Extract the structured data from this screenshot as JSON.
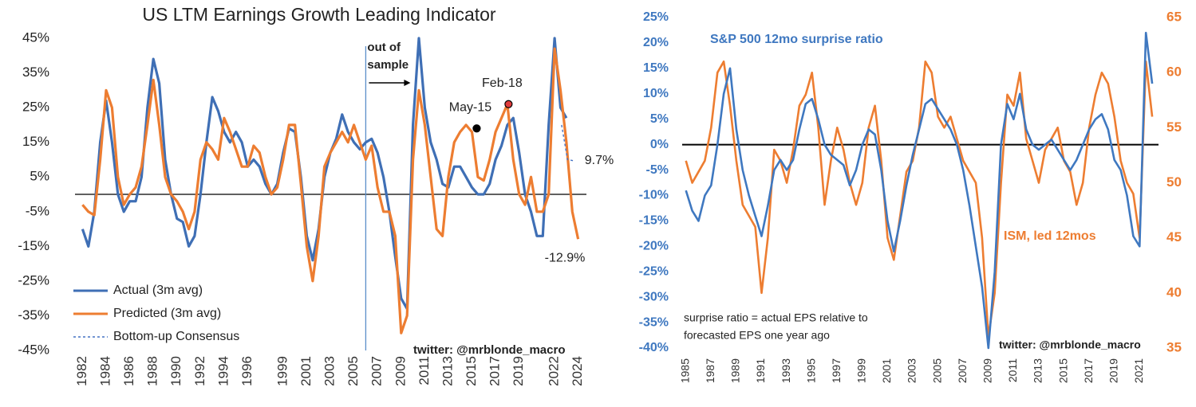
{
  "chart_data": [
    {
      "type": "line",
      "title": "US LTM Earnings Growth Leading Indicator",
      "xlim": [
        1981.7,
        2024.7
      ],
      "xticks": [
        1982,
        1984,
        1986,
        1988,
        1990,
        1992,
        1994,
        1996,
        1999,
        2001,
        2003,
        2005,
        2007,
        2009,
        2011,
        2013,
        2015,
        2017,
        2019,
        2022,
        2024
      ],
      "ylim": [
        -45,
        45
      ],
      "yticks": [
        {
          "value": 45,
          "label": "45%"
        },
        {
          "value": 35,
          "label": "35%"
        },
        {
          "value": 25,
          "label": "25%"
        },
        {
          "value": 15,
          "label": "15%"
        },
        {
          "value": 5,
          "label": "5%"
        },
        {
          "value": -5,
          "label": "-5%"
        },
        {
          "value": -15,
          "label": "-15%"
        },
        {
          "value": -25,
          "label": "-25%"
        },
        {
          "value": -35,
          "label": "-35%"
        },
        {
          "value": -45,
          "label": "-45%"
        }
      ],
      "x": [
        1982,
        1982.5,
        1983,
        1983.5,
        1984,
        1984.5,
        1985,
        1985.5,
        1986,
        1986.5,
        1987,
        1987.5,
        1988,
        1988.5,
        1989,
        1989.5,
        1990,
        1990.5,
        1991,
        1991.5,
        1992,
        1992.5,
        1993,
        1993.5,
        1994,
        1994.5,
        1995,
        1995.5,
        1996,
        1996.5,
        1997,
        1997.5,
        1998,
        1998.5,
        1999,
        1999.5,
        2000,
        2000.5,
        2001,
        2001.5,
        2002,
        2002.5,
        2003,
        2003.5,
        2004,
        2004.5,
        2005,
        2005.5,
        2006,
        2006.5,
        2007,
        2007.5,
        2008,
        2008.5,
        2009,
        2009.5,
        2010,
        2010.5,
        2011,
        2011.5,
        2012,
        2012.5,
        2013,
        2013.5,
        2014,
        2014.5,
        2015,
        2015.5,
        2016,
        2016.5,
        2017,
        2017.5,
        2018,
        2018.5,
        2019,
        2019.5,
        2020,
        2020.5,
        2021,
        2021.5,
        2022,
        2022.5,
        2023,
        2023.5,
        2024
      ],
      "series": [
        {
          "name": "Actual (3m avg)",
          "color": "#3f6fb5",
          "values": [
            -10,
            -15,
            -5,
            15,
            27,
            15,
            0,
            -5,
            -2,
            -2,
            5,
            25,
            39,
            32,
            10,
            0,
            -7,
            -8,
            -15,
            -12,
            0,
            15,
            28,
            24,
            18,
            15,
            18,
            15,
            8,
            10,
            8,
            3,
            0,
            3,
            12,
            19,
            18,
            5,
            -12,
            -19,
            -10,
            5,
            12,
            16,
            23,
            18,
            15,
            13,
            15,
            16,
            12,
            5,
            -5,
            -18,
            -30,
            -33,
            20,
            45,
            25,
            15,
            10,
            3,
            2,
            8,
            8,
            5,
            2,
            0,
            0,
            3,
            10,
            14,
            20,
            22,
            12,
            0,
            -5,
            -12,
            -12,
            20,
            45,
            25,
            22,
            null,
            null
          ]
        },
        {
          "name": "Predicted (3m avg)",
          "color": "#ed7d31",
          "end_label": "-12.9%",
          "values": [
            -3,
            -5,
            -6,
            10,
            30,
            25,
            5,
            -3,
            0,
            2,
            8,
            20,
            33,
            20,
            5,
            0,
            -2,
            -5,
            -10,
            -5,
            10,
            15,
            13,
            10,
            22,
            18,
            13,
            8,
            8,
            14,
            12,
            5,
            0,
            2,
            10,
            20,
            20,
            3,
            -15,
            -25,
            -12,
            8,
            12,
            15,
            18,
            15,
            20,
            15,
            10,
            14,
            2,
            -5,
            -5,
            -12,
            -40,
            -35,
            10,
            30,
            20,
            5,
            -10,
            -12,
            5,
            15,
            18,
            20,
            18,
            5,
            4,
            10,
            18,
            22,
            26,
            10,
            0,
            -3,
            5,
            -5,
            -5,
            0,
            42,
            30,
            15,
            -5,
            -12.9
          ]
        },
        {
          "name": "Bottom-up Consensus",
          "color": "#4472c4",
          "dashed": true,
          "end_label": "9.7%",
          "x": [
            2022.6,
            2023.1,
            2023.6
          ],
          "values": [
            20,
            10,
            9.7
          ]
        }
      ],
      "vline_x": 2006,
      "vline_label": [
        "out of",
        "sample"
      ],
      "highlights": [
        {
          "label": "May-15",
          "x": 2015.4,
          "y": 19,
          "color": "#000000"
        },
        {
          "label": "Feb-18",
          "x": 2018.1,
          "y": 26,
          "color": "#e03c3c"
        }
      ],
      "credit": "twitter: @mrblonde_macro"
    },
    {
      "type": "line",
      "xlim": [
        1984.7,
        2022.5
      ],
      "xticks": [
        1985,
        1987,
        1989,
        1991,
        1993,
        1995,
        1997,
        1999,
        2001,
        2003,
        2005,
        2007,
        2009,
        2011,
        2013,
        2015,
        2017,
        2019,
        2021
      ],
      "ylim": [
        -40,
        25
      ],
      "yticks": [
        {
          "value": 25,
          "label": "25%"
        },
        {
          "value": 20,
          "label": "20%"
        },
        {
          "value": 15,
          "label": "15%"
        },
        {
          "value": 10,
          "label": "10%"
        },
        {
          "value": 5,
          "label": "5%"
        },
        {
          "value": 0,
          "label": "0%"
        },
        {
          "value": -5,
          "label": "-5%"
        },
        {
          "value": -10,
          "label": "-10%"
        },
        {
          "value": -15,
          "label": "-15%"
        },
        {
          "value": -20,
          "label": "-20%"
        },
        {
          "value": -25,
          "label": "-25%"
        },
        {
          "value": -30,
          "label": "-30%"
        },
        {
          "value": -35,
          "label": "-35%"
        },
        {
          "value": -40,
          "label": "-40%"
        }
      ],
      "y2lim": [
        35,
        65
      ],
      "y2ticks": [
        65,
        60,
        55,
        50,
        45,
        40,
        35
      ],
      "x": [
        1985,
        1985.5,
        1986,
        1986.5,
        1987,
        1987.5,
        1988,
        1988.5,
        1989,
        1989.5,
        1990,
        1990.5,
        1991,
        1991.5,
        1992,
        1992.5,
        1993,
        1993.5,
        1994,
        1994.5,
        1995,
        1995.5,
        1996,
        1996.5,
        1997,
        1997.5,
        1998,
        1998.5,
        1999,
        1999.5,
        2000,
        2000.5,
        2001,
        2001.5,
        2002,
        2002.5,
        2003,
        2003.5,
        2004,
        2004.5,
        2005,
        2005.5,
        2006,
        2006.5,
        2007,
        2007.5,
        2008,
        2008.5,
        2009,
        2009.5,
        2010,
        2010.5,
        2011,
        2011.5,
        2012,
        2012.5,
        2013,
        2013.5,
        2014,
        2014.5,
        2015,
        2015.5,
        2016,
        2016.5,
        2017,
        2017.5,
        2018,
        2018.5,
        2019,
        2019.5,
        2020,
        2020.5,
        2021,
        2021.5,
        2022
      ],
      "series": [
        {
          "name": "ISM, led 12mos",
          "color": "#ed7d31",
          "axis": "y2",
          "values": [
            52,
            50,
            51,
            52,
            55,
            60,
            61,
            57,
            52,
            48,
            47,
            46,
            40,
            45,
            53,
            52,
            50,
            53,
            57,
            58,
            60,
            55,
            48,
            52,
            55,
            53,
            50,
            48,
            50,
            55,
            57,
            52,
            45,
            43,
            47,
            51,
            52,
            55,
            61,
            60,
            56,
            55,
            56,
            54,
            52,
            51,
            50,
            45,
            36,
            40,
            50,
            58,
            57,
            60,
            54,
            52,
            50,
            53,
            54,
            55,
            52,
            51,
            48,
            50,
            55,
            58,
            60,
            59,
            56,
            52,
            50,
            49,
            45,
            61,
            56
          ]
        },
        {
          "name": "S&P 500 12mo surprise ratio",
          "color": "#3f78c0",
          "values": [
            -9,
            -13,
            -15,
            -10,
            -8,
            0,
            10,
            15,
            3,
            -5,
            -10,
            -14,
            -18,
            -12,
            -5,
            -3,
            -5,
            -3,
            3,
            8,
            9,
            5,
            0,
            -2,
            -3,
            -4,
            -8,
            -5,
            0,
            3,
            2,
            -5,
            -15,
            -21,
            -15,
            -8,
            -2,
            3,
            8,
            9,
            7,
            5,
            3,
            0,
            -5,
            -12,
            -20,
            -28,
            -40,
            -25,
            0,
            8,
            5,
            10,
            3,
            0,
            -1,
            0,
            1,
            -1,
            -3,
            -5,
            -3,
            0,
            3,
            5,
            6,
            3,
            -3,
            -5,
            -10,
            -18,
            -20,
            22,
            12
          ]
        }
      ],
      "note": [
        "surprise ratio = actual EPS relative to",
        "forecasted EPS one year ago"
      ],
      "credit": "twitter: @mrblonde_macro"
    }
  ]
}
